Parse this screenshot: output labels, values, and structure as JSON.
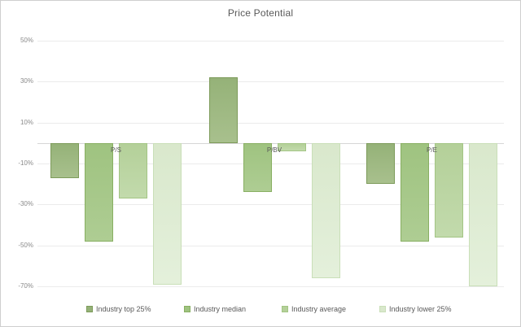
{
  "title": "Price Potential",
  "chart_data": {
    "type": "bar",
    "title": "Price Potential",
    "categories": [
      "P/S",
      "P/BV",
      "P/E"
    ],
    "series": [
      {
        "name": "Industry top 25%",
        "values": [
          -17,
          32,
          -20
        ],
        "fill": "#95b278",
        "fill_light": "#a8c08d",
        "border": "#7d9b5a"
      },
      {
        "name": "Industry median",
        "values": [
          -48,
          -24,
          -48
        ],
        "fill": "#9fc380",
        "fill_light": "#aecd93",
        "border": "#88af62"
      },
      {
        "name": "Industry average",
        "values": [
          -27,
          -4,
          -46
        ],
        "fill": "#b4d099",
        "fill_light": "#c2daac",
        "border": "#a3c584"
      },
      {
        "name": "Industry lower 25%",
        "values": [
          -69,
          -66,
          -70
        ],
        "fill": "#d9e8cc",
        "fill_light": "#e4f0db",
        "border": "#c9dfb8"
      }
    ],
    "xlabel": "",
    "ylabel": "",
    "y_ticks": [
      "50%",
      "30%",
      "10%",
      "-10%",
      "-30%",
      "-50%",
      "-70%"
    ],
    "y_tick_values": [
      50,
      30,
      10,
      -10,
      -30,
      -50,
      -70
    ],
    "ylim": [
      -75,
      56
    ],
    "grid": true,
    "legend_position": "bottom"
  },
  "colors": {
    "background": "#ffffff",
    "frame_border": "#cfcfcf",
    "gridline": "#ebebeb",
    "zero_line": "#d6d6d6",
    "title_text": "#595959",
    "axis_text": "#8a8a8a",
    "category_text": "#595959",
    "legend_text": "#595959"
  }
}
